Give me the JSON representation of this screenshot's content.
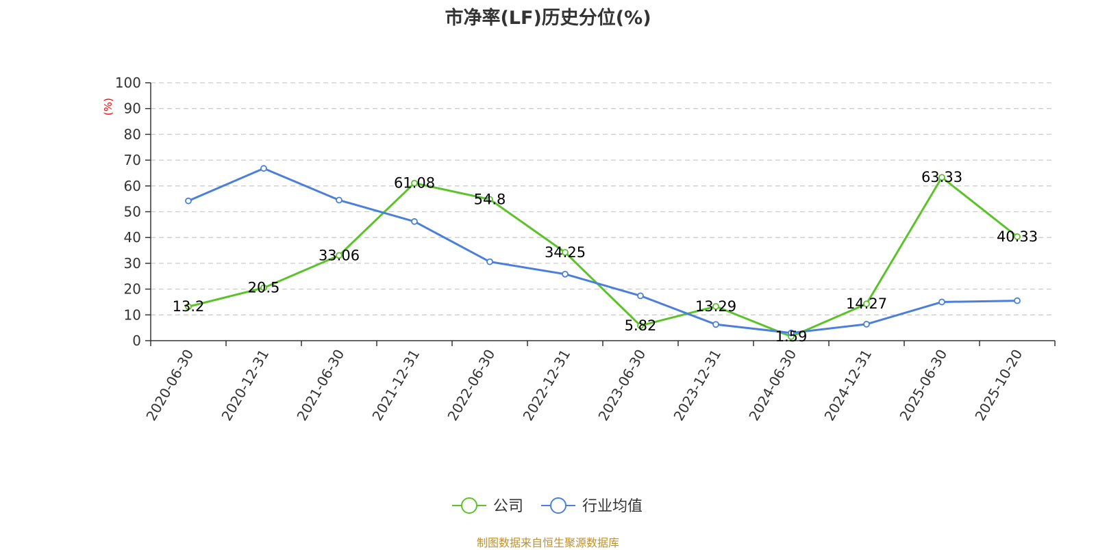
{
  "chart_data": {
    "type": "line",
    "title": "市净率(LF)历史分位(%)",
    "ylabel": "(%)",
    "ylim": [
      0,
      100
    ],
    "yticks": [
      0,
      10,
      20,
      30,
      40,
      50,
      60,
      70,
      80,
      90,
      100
    ],
    "grid": true,
    "legend_position": "bottom",
    "categories": [
      "2020-06-30",
      "2020-12-31",
      "2021-06-30",
      "2021-12-31",
      "2022-06-30",
      "2022-12-31",
      "2023-06-30",
      "2023-12-31",
      "2024-06-30",
      "2024-12-31",
      "2025-06-30",
      "2025-10-20"
    ],
    "series": [
      {
        "name": "公司",
        "color": "#5bc32a",
        "show_labels": true,
        "values": [
          13.2,
          20.5,
          33.06,
          61.08,
          54.8,
          34.25,
          5.82,
          13.29,
          1.59,
          14.27,
          63.33,
          40.33
        ]
      },
      {
        "name": "行业均值",
        "color": "#4a7fdc",
        "show_labels": false,
        "values": [
          54.2,
          66.8,
          54.5,
          46.2,
          30.6,
          25.8,
          17.4,
          6.3,
          3.0,
          6.4,
          15.0,
          15.5
        ]
      }
    ],
    "ylabel_color": "#ff0000",
    "source_note": "制图数据来自恒生聚源数据库"
  }
}
